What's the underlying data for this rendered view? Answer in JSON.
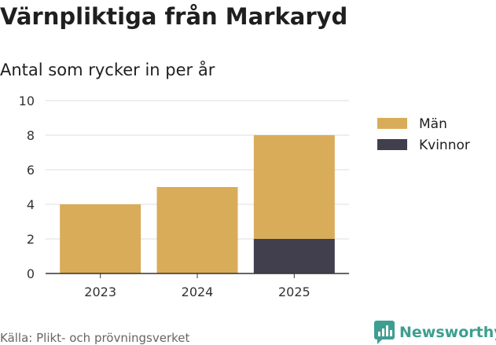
{
  "header": {
    "title": "Värnpliktiga från Markaryd",
    "subtitle": "Antal som rycker in per år"
  },
  "footer": {
    "source": "Källa: Plikt- och prövningsverket",
    "brand": "Newsworthy"
  },
  "colors": {
    "man": "#d9ac5a",
    "kvinnor": "#413f4e",
    "grid": "#dddddd",
    "axis": "#333333",
    "brand": "#3d9e91"
  },
  "chart_data": {
    "type": "bar",
    "stacked": true,
    "categories": [
      "2023",
      "2024",
      "2025"
    ],
    "series": [
      {
        "name": "Kvinnor",
        "values": [
          0,
          0,
          2
        ]
      },
      {
        "name": "Män",
        "values": [
          4,
          5,
          6
        ]
      }
    ],
    "legend": [
      "Män",
      "Kvinnor"
    ],
    "legend_position": "right",
    "ylim": [
      0,
      10
    ],
    "yticks": [
      0,
      2,
      4,
      6,
      8,
      10
    ],
    "grid": true
  }
}
